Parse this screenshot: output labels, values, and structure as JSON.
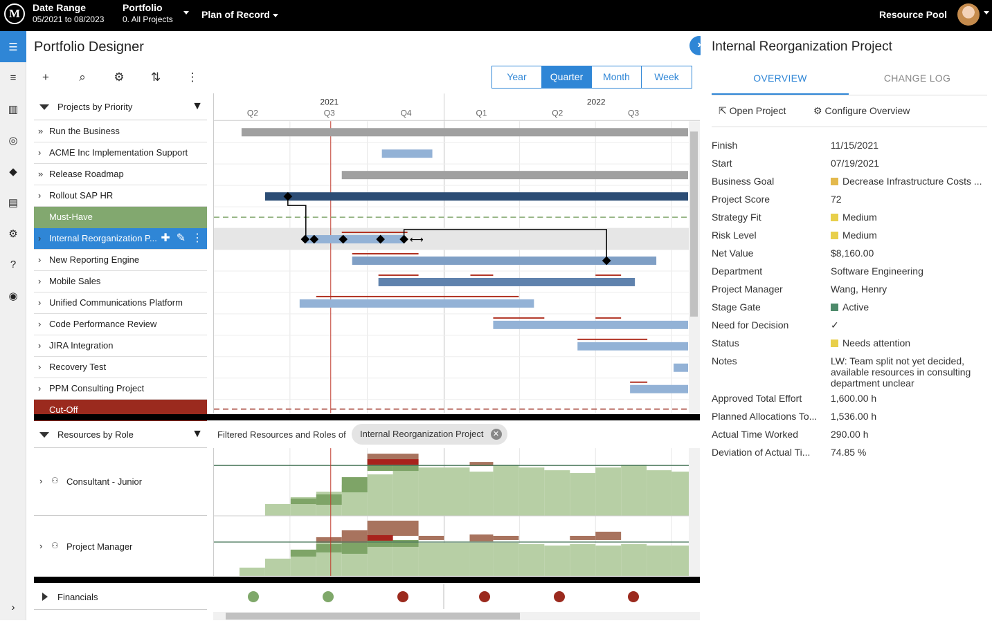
{
  "topbar": {
    "logo_letter": "M",
    "date_range_label": "Date Range",
    "date_range_value": "05/2021 to 08/2023",
    "portfolio_label": "Portfolio",
    "portfolio_value": "0. All Projects",
    "plan_label": "Plan of Record",
    "resource_pool_label": "Resource Pool"
  },
  "page": {
    "title": "Portfolio Designer"
  },
  "scale_buttons": [
    "Year",
    "Quarter",
    "Month",
    "Week"
  ],
  "scale_selected": "Quarter",
  "timeline": {
    "years": [
      "2021",
      "2022"
    ],
    "quarters": [
      "Q2",
      "Q3",
      "Q4",
      "Q1",
      "Q2",
      "Q3"
    ]
  },
  "projects_header": "Projects by Priority",
  "projects": [
    {
      "label": "Run the Business",
      "kind": "group"
    },
    {
      "label": "ACME Inc Implementation Support",
      "kind": "row"
    },
    {
      "label": "Release Roadmap",
      "kind": "group"
    },
    {
      "label": "Rollout SAP HR",
      "kind": "row"
    },
    {
      "label": "Must-Have",
      "kind": "band-green"
    },
    {
      "label": "Internal Reorganization P...",
      "kind": "selected"
    },
    {
      "label": "New Reporting Engine",
      "kind": "row"
    },
    {
      "label": "Mobile Sales",
      "kind": "row"
    },
    {
      "label": "Unified Communications Platform",
      "kind": "row"
    },
    {
      "label": "Code Performance Review",
      "kind": "row"
    },
    {
      "label": "JIRA Integration",
      "kind": "row"
    },
    {
      "label": "Recovery Test",
      "kind": "row"
    },
    {
      "label": "PPM Consulting Project",
      "kind": "row"
    },
    {
      "label": "Cut-Off",
      "kind": "band-red"
    }
  ],
  "resources": {
    "header": "Resources by Role",
    "filter_text": "Filtered Resources and Roles of",
    "filter_chip": "Internal Reorganization Project",
    "roles": [
      "Consultant - Junior",
      "Project Manager"
    ],
    "financials_label": "Financials",
    "financial_status_colors": [
      "#7fa86a",
      "#7fa86a",
      "#9b2a1e",
      "#9b2a1e",
      "#9b2a1e",
      "#9b2a1e"
    ]
  },
  "detail": {
    "title": "Internal Reorganization Project",
    "tabs": [
      "OVERVIEW",
      "CHANGE LOG"
    ],
    "actions": {
      "open": "Open Project",
      "configure": "Configure Overview"
    },
    "fields": [
      {
        "k": "Finish",
        "v": "11/15/2021"
      },
      {
        "k": "Start",
        "v": "07/19/2021"
      },
      {
        "k": "Business Goal",
        "v": "Decrease Infrastructure Costs ...",
        "swatch": "#e3b94d"
      },
      {
        "k": "Project Score",
        "v": "72"
      },
      {
        "k": "Strategy Fit",
        "v": "Medium",
        "swatch": "#e8cf4a"
      },
      {
        "k": "Risk Level",
        "v": "Medium",
        "swatch": "#e8cf4a"
      },
      {
        "k": "Net Value",
        "v": "$8,160.00"
      },
      {
        "k": "Department",
        "v": "Software Engineering"
      },
      {
        "k": "Project Manager",
        "v": "Wang, Henry"
      },
      {
        "k": "Stage Gate",
        "v": "Active",
        "swatch": "#4d8a6a"
      },
      {
        "k": "Need for Decision",
        "v": "✓"
      },
      {
        "k": "Status",
        "v": "Needs attention",
        "swatch": "#e8cf4a"
      },
      {
        "k": "Notes",
        "v": "LW: Team split not yet decided, available resources in consulting department unclear"
      },
      {
        "k": "Approved Total Effort",
        "v": "1,600.00 h"
      },
      {
        "k": "Planned Allocations To...",
        "v": "1,536.00 h"
      },
      {
        "k": "Actual Time Worked",
        "v": "290.00 h"
      },
      {
        "k": "Deviation of Actual Ti...",
        "v": "74.85 %"
      }
    ]
  },
  "colors": {
    "accent": "#2f86d6",
    "must_have": "#82a86f",
    "cut_off": "#9b2a1e"
  }
}
